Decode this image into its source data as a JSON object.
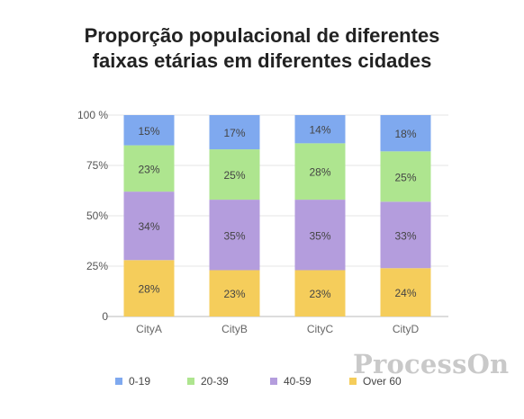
{
  "chart_data": {
    "type": "bar",
    "stacked": true,
    "title_lines": [
      "Proporção populacional de diferentes",
      "faixas etárias em diferentes cidades"
    ],
    "categories": [
      "CityA",
      "CityB",
      "CityC",
      "CityD"
    ],
    "series": [
      {
        "name": "Over 60",
        "color": "#f5cd5b",
        "values": [
          28,
          23,
          23,
          24
        ]
      },
      {
        "name": "40-59",
        "color": "#b49ddd",
        "values": [
          34,
          35,
          35,
          33
        ]
      },
      {
        "name": "20-39",
        "color": "#aee58f",
        "values": [
          23,
          25,
          28,
          25
        ]
      },
      {
        "name": "0-19",
        "color": "#7fa9ef",
        "values": [
          15,
          17,
          14,
          18
        ]
      }
    ],
    "legend_order": [
      "0-19",
      "20-39",
      "40-59",
      "Over 60"
    ],
    "legend_position": "bottom",
    "y_ticks": [
      "0",
      "25%",
      "50%",
      "75%",
      "100 %"
    ],
    "ylim": [
      0,
      100
    ],
    "grid": true,
    "value_suffix": "%"
  },
  "watermark": "ProcessOn"
}
